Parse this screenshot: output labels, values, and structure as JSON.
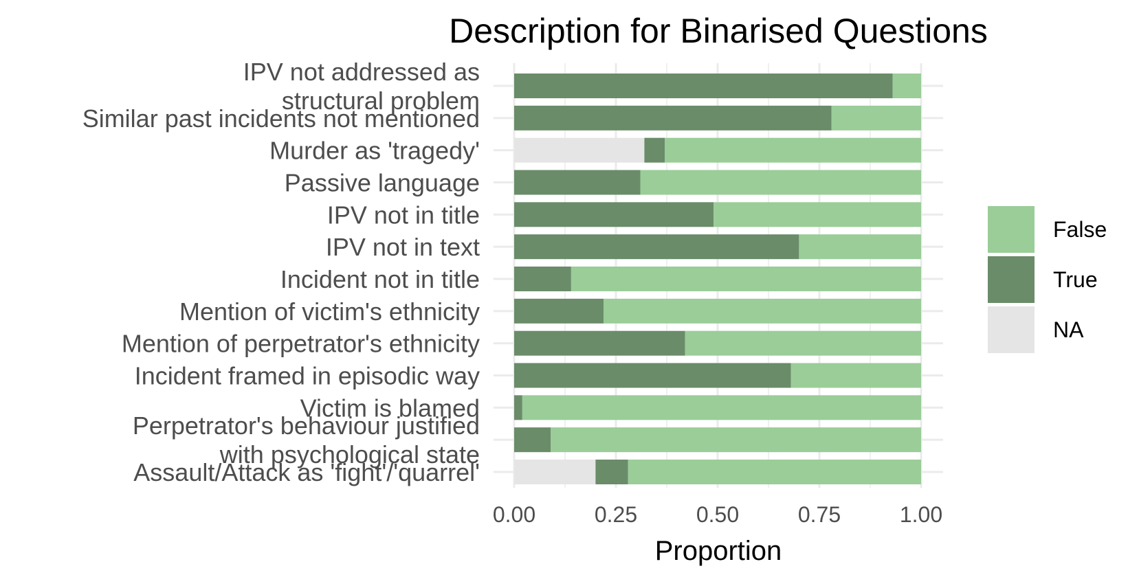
{
  "chart_data": {
    "type": "bar",
    "orientation": "horizontal",
    "stacked": true,
    "title": "Description for Binarised Questions",
    "xlabel": "Proportion",
    "ylabel": "",
    "xlim": [
      0,
      1
    ],
    "xticks": [
      "0.00",
      "0.25",
      "0.50",
      "0.75",
      "1.00"
    ],
    "grid": true,
    "legend_position": "right",
    "categories": [
      "IPV not addressed as\nstructural problem",
      "Similar past incidents not mentioned",
      "Murder as 'tragedy'",
      "Passive language",
      "IPV not in title",
      "IPV not in text",
      "Incident not in title",
      "Mention of victim's ethnicity",
      "Mention of perpetrator's ethnicity",
      "Incident framed in episodic way",
      "Victim is blamed",
      "Perpetrator's behaviour justified\nwith psychological state",
      "Assault/Attack as 'fight'/'quarrel'"
    ],
    "series": [
      {
        "name": "NA",
        "color": "#e5e5e5",
        "values": [
          0,
          0,
          0.32,
          0,
          0,
          0,
          0,
          0,
          0,
          0,
          0,
          0,
          0.2
        ]
      },
      {
        "name": "True",
        "color": "#6a8c69",
        "values": [
          0.93,
          0.78,
          0.05,
          0.31,
          0.49,
          0.7,
          0.14,
          0.22,
          0.42,
          0.68,
          0.02,
          0.09,
          0.08
        ]
      },
      {
        "name": "False",
        "color": "#9acd98",
        "values": [
          0.07,
          0.22,
          0.63,
          0.69,
          0.51,
          0.3,
          0.86,
          0.78,
          0.58,
          0.32,
          0.98,
          0.91,
          0.72
        ]
      }
    ],
    "legend": [
      "False",
      "True",
      "NA"
    ]
  }
}
